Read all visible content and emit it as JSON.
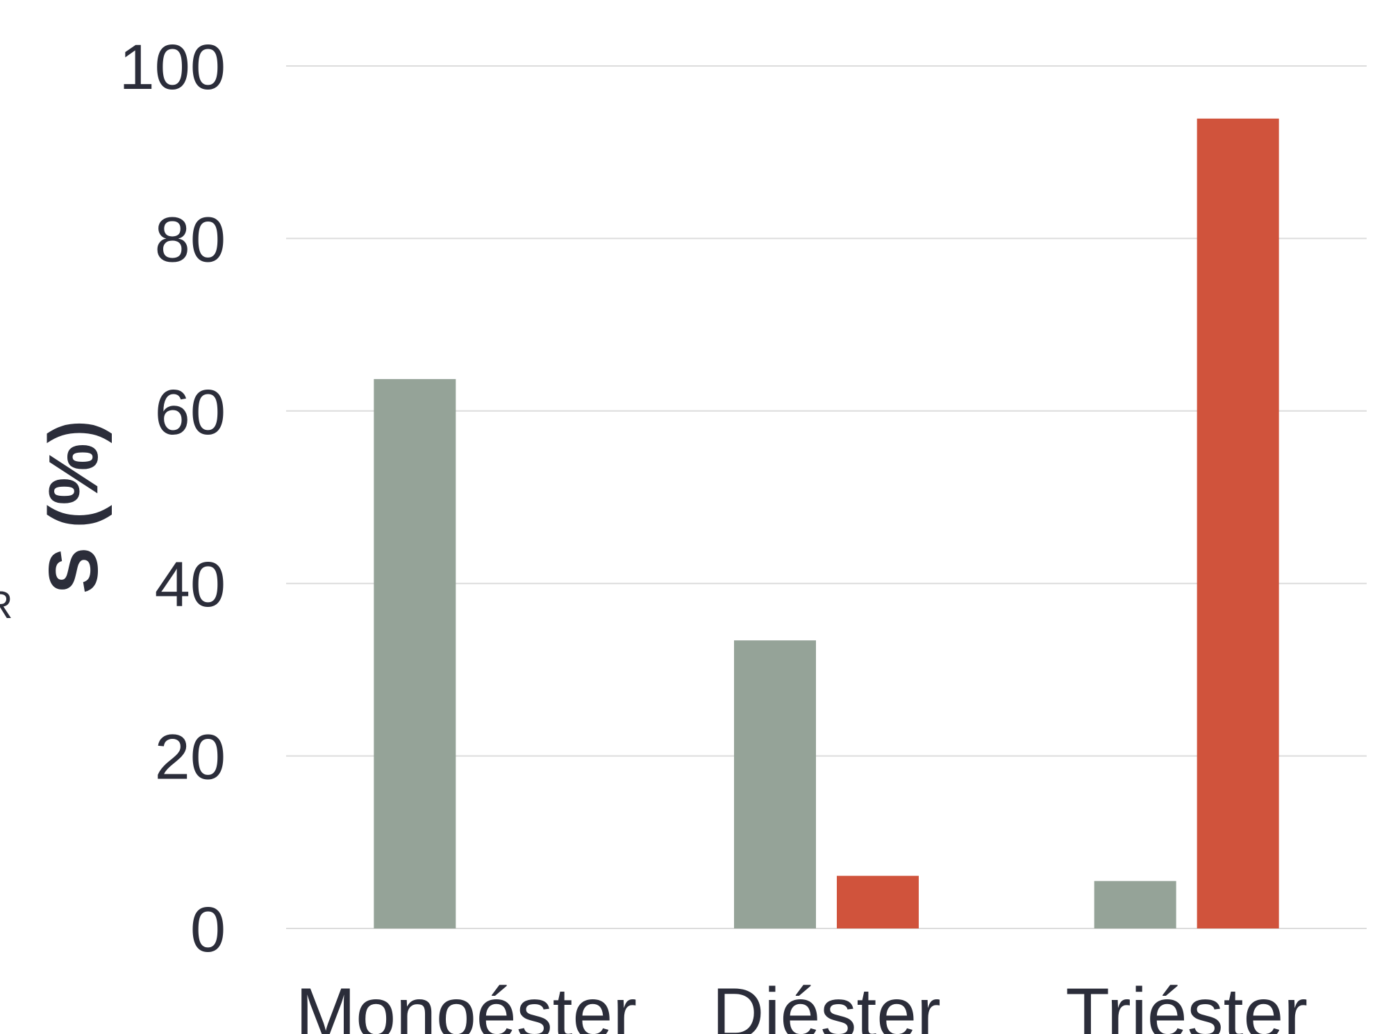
{
  "chart_data": {
    "type": "bar",
    "title": "",
    "xlabel": "",
    "ylabel": "S (%)",
    "ylim": [
      0,
      100
    ],
    "yticks": [
      0,
      20,
      40,
      60,
      80,
      100
    ],
    "categories": [
      "Monoéster",
      "Diéster",
      "Triéster"
    ],
    "series": [
      {
        "values": [
          63.7,
          33.4,
          5.5
        ],
        "color": "#95a398"
      },
      {
        "values": [
          0,
          6.1,
          93.9
        ],
        "color": "#d0533c"
      }
    ],
    "grid": true,
    "legend": "none"
  },
  "edge_text": "R"
}
